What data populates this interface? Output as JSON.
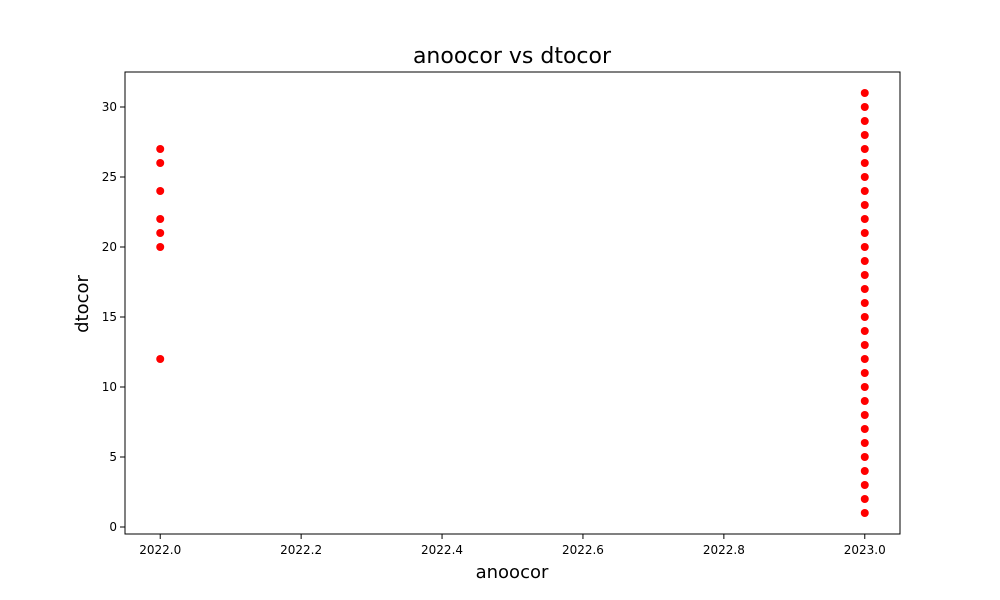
{
  "chart_data": {
    "type": "scatter",
    "title": "anoocor vs dtocor",
    "xlabel": "anoocor",
    "ylabel": "dtocor",
    "xlim": [
      2021.95,
      2023.05
    ],
    "ylim": [
      -0.5,
      32.5
    ],
    "xticks": [
      2022.0,
      2022.2,
      2022.4,
      2022.6,
      2022.8,
      2023.0
    ],
    "xtick_labels": [
      "2022.0",
      "2022.2",
      "2022.4",
      "2022.6",
      "2022.8",
      "2023.0"
    ],
    "yticks": [
      0,
      5,
      10,
      15,
      20,
      25,
      30
    ],
    "ytick_labels": [
      "0",
      "5",
      "10",
      "15",
      "20",
      "25",
      "30"
    ],
    "grid": false,
    "marker_color": "#ff0000",
    "series": [
      {
        "points": [
          {
            "x": 2022,
            "y": 12
          },
          {
            "x": 2022,
            "y": 20
          },
          {
            "x": 2022,
            "y": 21
          },
          {
            "x": 2022,
            "y": 22
          },
          {
            "x": 2022,
            "y": 24
          },
          {
            "x": 2022,
            "y": 26
          },
          {
            "x": 2022,
            "y": 27
          },
          {
            "x": 2023,
            "y": 1
          },
          {
            "x": 2023,
            "y": 2
          },
          {
            "x": 2023,
            "y": 3
          },
          {
            "x": 2023,
            "y": 4
          },
          {
            "x": 2023,
            "y": 5
          },
          {
            "x": 2023,
            "y": 6
          },
          {
            "x": 2023,
            "y": 7
          },
          {
            "x": 2023,
            "y": 8
          },
          {
            "x": 2023,
            "y": 9
          },
          {
            "x": 2023,
            "y": 10
          },
          {
            "x": 2023,
            "y": 11
          },
          {
            "x": 2023,
            "y": 12
          },
          {
            "x": 2023,
            "y": 13
          },
          {
            "x": 2023,
            "y": 14
          },
          {
            "x": 2023,
            "y": 15
          },
          {
            "x": 2023,
            "y": 16
          },
          {
            "x": 2023,
            "y": 17
          },
          {
            "x": 2023,
            "y": 18
          },
          {
            "x": 2023,
            "y": 19
          },
          {
            "x": 2023,
            "y": 20
          },
          {
            "x": 2023,
            "y": 21
          },
          {
            "x": 2023,
            "y": 22
          },
          {
            "x": 2023,
            "y": 23
          },
          {
            "x": 2023,
            "y": 24
          },
          {
            "x": 2023,
            "y": 25
          },
          {
            "x": 2023,
            "y": 26
          },
          {
            "x": 2023,
            "y": 27
          },
          {
            "x": 2023,
            "y": 28
          },
          {
            "x": 2023,
            "y": 29
          },
          {
            "x": 2023,
            "y": 30
          },
          {
            "x": 2023,
            "y": 31
          }
        ]
      }
    ]
  }
}
